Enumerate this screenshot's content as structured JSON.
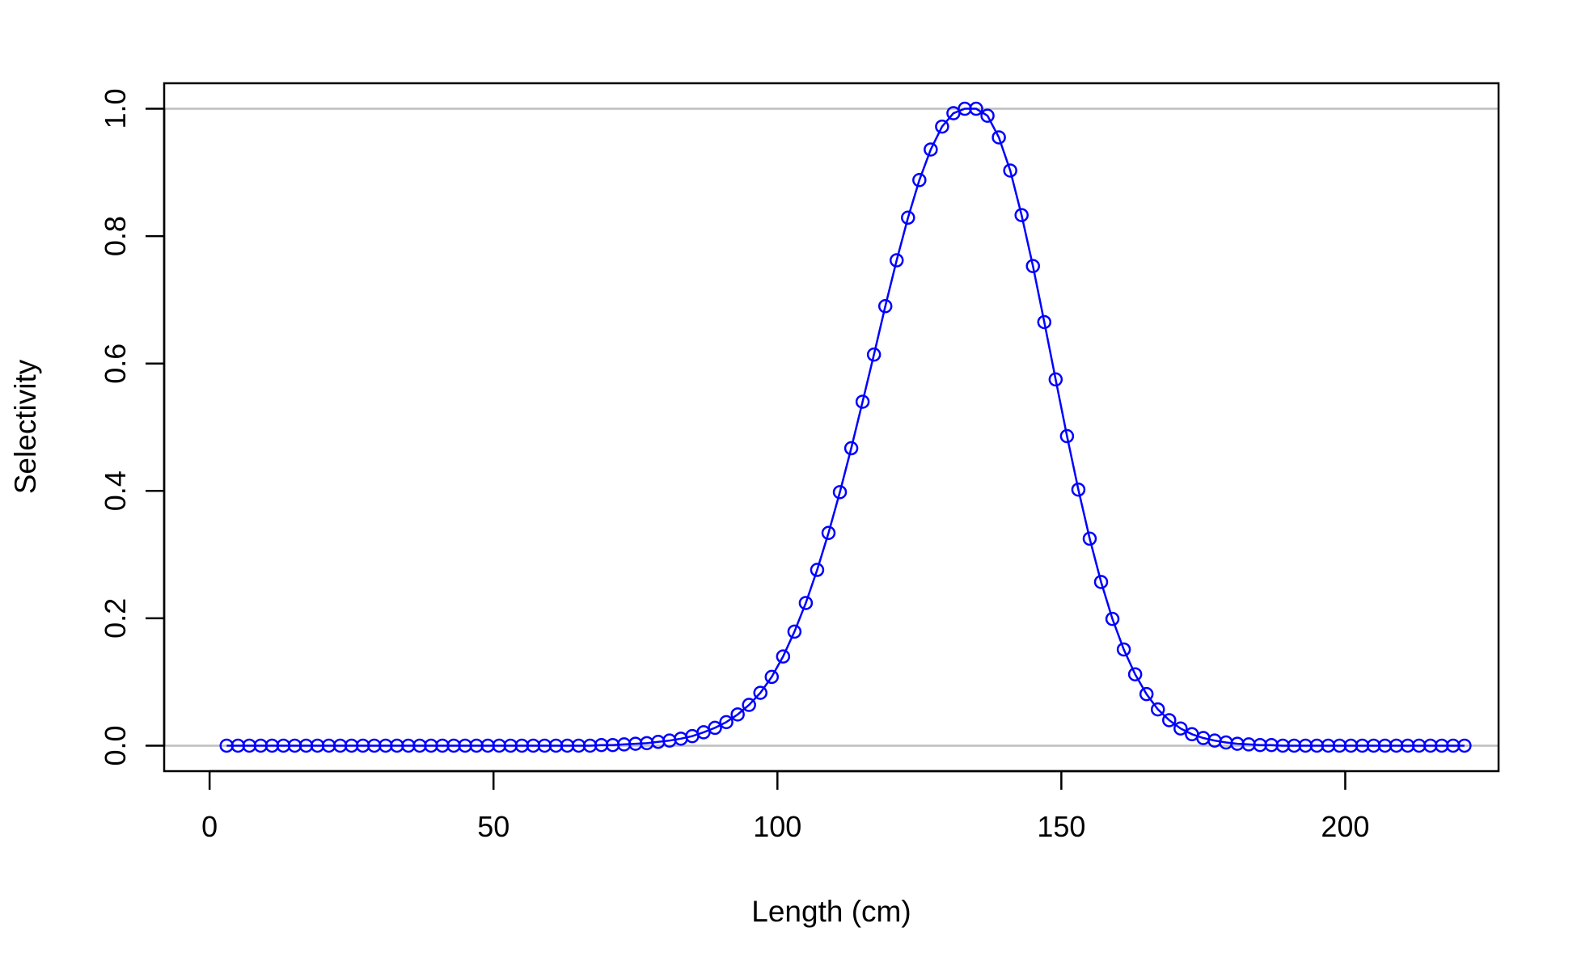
{
  "chart_data": {
    "type": "line",
    "title": "",
    "xlabel": "Length (cm)",
    "ylabel": "Selectivity",
    "xlim": [
      -8,
      227
    ],
    "ylim": [
      -0.04,
      1.04
    ],
    "xticks": [
      {
        "value": 0,
        "label": "0"
      },
      {
        "value": 50,
        "label": "50"
      },
      {
        "value": 100,
        "label": "100"
      },
      {
        "value": 150,
        "label": "150"
      },
      {
        "value": 200,
        "label": "200"
      }
    ],
    "yticks": [
      {
        "value": 0.0,
        "label": "0.0"
      },
      {
        "value": 0.2,
        "label": "0.2"
      },
      {
        "value": 0.4,
        "label": "0.4"
      },
      {
        "value": 0.6,
        "label": "0.6"
      },
      {
        "value": 0.8,
        "label": "0.8"
      },
      {
        "value": 1.0,
        "label": "1.0"
      }
    ],
    "reference_lines": [
      0,
      1
    ],
    "colors": {
      "series": "#0000ff",
      "reference": "#bebebe",
      "axis": "#000000"
    },
    "series": [
      {
        "marker": "open-circle",
        "x": [
          3,
          5,
          7,
          9,
          11,
          13,
          15,
          17,
          19,
          21,
          23,
          25,
          27,
          29,
          31,
          33,
          35,
          37,
          39,
          41,
          43,
          45,
          47,
          49,
          51,
          53,
          55,
          57,
          59,
          61,
          63,
          65,
          67,
          69,
          71,
          73,
          75,
          77,
          79,
          81,
          83,
          85,
          87,
          89,
          91,
          93,
          95,
          97,
          99,
          101,
          103,
          105,
          107,
          109,
          111,
          113,
          115,
          117,
          119,
          121,
          123,
          125,
          127,
          129,
          131,
          133,
          135,
          137,
          139,
          141,
          143,
          145,
          147,
          149,
          151,
          153,
          155,
          157,
          159,
          161,
          163,
          165,
          167,
          169,
          171,
          173,
          175,
          177,
          179,
          181,
          183,
          185,
          187,
          189,
          191,
          193,
          195,
          197,
          199,
          201,
          203,
          205,
          207,
          209,
          211,
          213,
          215,
          217,
          219,
          221
        ],
        "y": [
          0.0,
          0.0,
          0.0,
          0.0,
          0.0,
          0.0,
          0.0,
          0.0,
          0.0,
          0.0,
          0.0,
          0.0,
          0.0,
          0.0,
          0.0,
          0.0,
          0.0,
          0.0,
          0.0,
          0.0,
          0.0,
          0.0,
          0.0,
          0.0,
          0.0,
          0.0,
          0.0,
          0.0,
          0.0,
          0.0,
          0.0,
          0.0,
          0.0,
          0.001,
          0.001,
          0.002,
          0.003,
          0.004,
          0.006,
          0.008,
          0.011,
          0.015,
          0.021,
          0.028,
          0.037,
          0.049,
          0.064,
          0.083,
          0.108,
          0.14,
          0.179,
          0.224,
          0.276,
          0.334,
          0.398,
          0.467,
          0.54,
          0.614,
          0.69,
          0.762,
          0.829,
          0.888,
          0.936,
          0.972,
          0.993,
          1.0,
          1.0,
          0.989,
          0.955,
          0.903,
          0.833,
          0.753,
          0.665,
          0.575,
          0.486,
          0.402,
          0.325,
          0.257,
          0.199,
          0.151,
          0.112,
          0.081,
          0.057,
          0.04,
          0.027,
          0.018,
          0.012,
          0.008,
          0.005,
          0.003,
          0.002,
          0.001,
          0.001,
          0.0,
          0.0,
          0.0,
          0.0,
          0.0,
          0.0,
          0.0,
          0.0,
          0.0,
          0.0,
          0.0,
          0.0,
          0.0,
          0.0,
          0.0,
          0.0,
          0.0
        ]
      }
    ]
  }
}
